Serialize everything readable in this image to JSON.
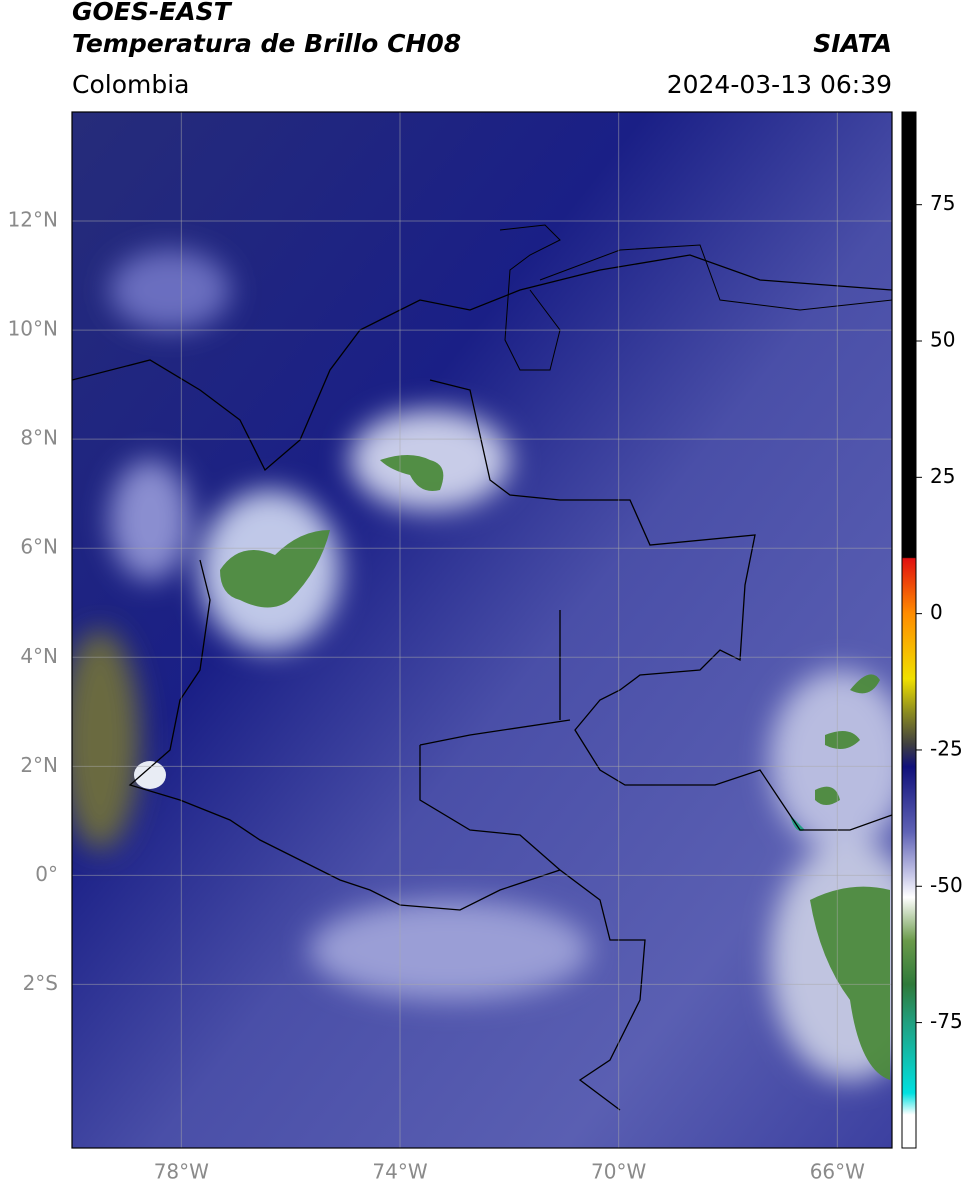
{
  "header": {
    "title": "GOES-EAST",
    "subtitle": "Temperatura de Brillo CH08",
    "source": "SIATA",
    "region": "Colombia",
    "timestamp": "2024-03-13 06:39"
  },
  "map": {
    "lon_range": [
      -80,
      -65
    ],
    "lat_range": [
      -5,
      14
    ],
    "grid": true,
    "lon_ticks": [
      {
        "value": -78,
        "label": "78°W"
      },
      {
        "value": -74,
        "label": "74°W"
      },
      {
        "value": -70,
        "label": "70°W"
      },
      {
        "value": -66,
        "label": "66°W"
      }
    ],
    "lat_ticks": [
      {
        "value": 12,
        "label": "12°N"
      },
      {
        "value": 10,
        "label": "10°N"
      },
      {
        "value": 8,
        "label": "8°N"
      },
      {
        "value": 6,
        "label": "6°N"
      },
      {
        "value": 4,
        "label": "4°N"
      },
      {
        "value": 2,
        "label": "2°N"
      },
      {
        "value": 0,
        "label": "0°"
      },
      {
        "value": -2,
        "label": "2°S"
      }
    ]
  },
  "colorbar": {
    "range": [
      -98,
      92
    ],
    "ticks": [
      -75,
      -50,
      -25,
      0,
      25,
      50,
      75
    ]
  }
}
